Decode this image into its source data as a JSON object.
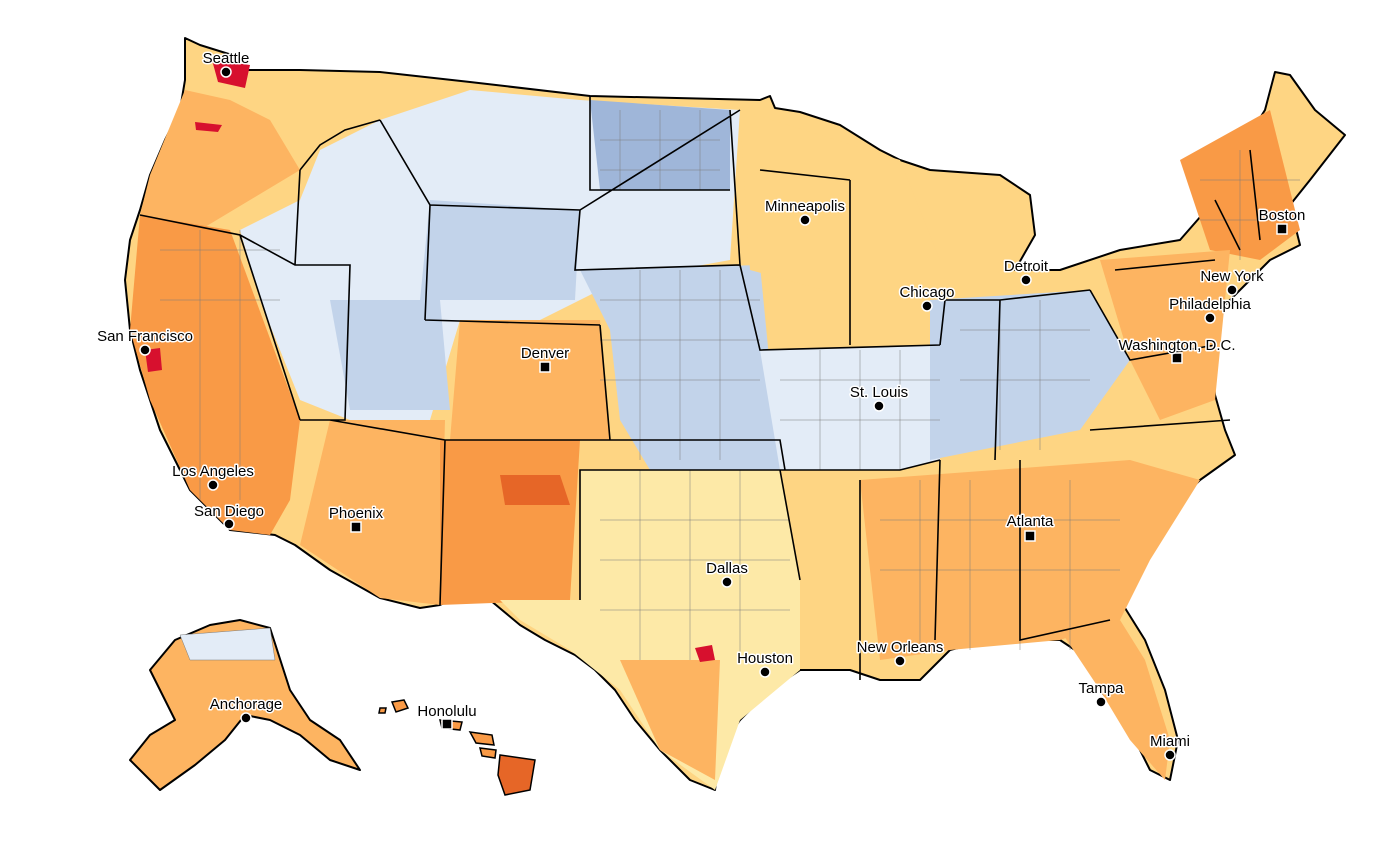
{
  "map": {
    "type": "choropleth",
    "region": "United States counties",
    "palette": {
      "cold_dark": "#9fb6d9",
      "cold": "#c2d3ea",
      "cold_light": "#e3ecf7",
      "neutral": "#fde9a7",
      "warm_light": "#fed583",
      "warm": "#fdb461",
      "warm_mid": "#f99a46",
      "warm_dark": "#e66627",
      "hot": "#d7102e"
    },
    "cities": [
      {
        "id": "seattle",
        "label": "Seattle",
        "marker": "circle"
      },
      {
        "id": "minneapolis",
        "label": "Minneapolis",
        "marker": "circle"
      },
      {
        "id": "boston",
        "label": "Boston",
        "marker": "square"
      },
      {
        "id": "detroit",
        "label": "Detroit",
        "marker": "circle"
      },
      {
        "id": "new_york",
        "label": "New York",
        "marker": "circle"
      },
      {
        "id": "chicago",
        "label": "Chicago",
        "marker": "circle"
      },
      {
        "id": "philadelphia",
        "label": "Philadelphia",
        "marker": "circle"
      },
      {
        "id": "san_francisco",
        "label": "San Francisco",
        "marker": "circle"
      },
      {
        "id": "denver",
        "label": "Denver",
        "marker": "square"
      },
      {
        "id": "washington_dc",
        "label": "Washington, D.C.",
        "marker": "square"
      },
      {
        "id": "st_louis",
        "label": "St. Louis",
        "marker": "circle"
      },
      {
        "id": "los_angeles",
        "label": "Los Angeles",
        "marker": "circle"
      },
      {
        "id": "san_diego",
        "label": "San Diego",
        "marker": "circle"
      },
      {
        "id": "phoenix",
        "label": "Phoenix",
        "marker": "square"
      },
      {
        "id": "atlanta",
        "label": "Atlanta",
        "marker": "square"
      },
      {
        "id": "dallas",
        "label": "Dallas",
        "marker": "circle"
      },
      {
        "id": "houston",
        "label": "Houston",
        "marker": "circle"
      },
      {
        "id": "new_orleans",
        "label": "New Orleans",
        "marker": "circle"
      },
      {
        "id": "tampa",
        "label": "Tampa",
        "marker": "circle"
      },
      {
        "id": "anchorage",
        "label": "Anchorage",
        "marker": "circle"
      },
      {
        "id": "honolulu",
        "label": "Honolulu",
        "marker": "square"
      },
      {
        "id": "miami",
        "label": "Miami",
        "marker": "circle"
      }
    ]
  }
}
